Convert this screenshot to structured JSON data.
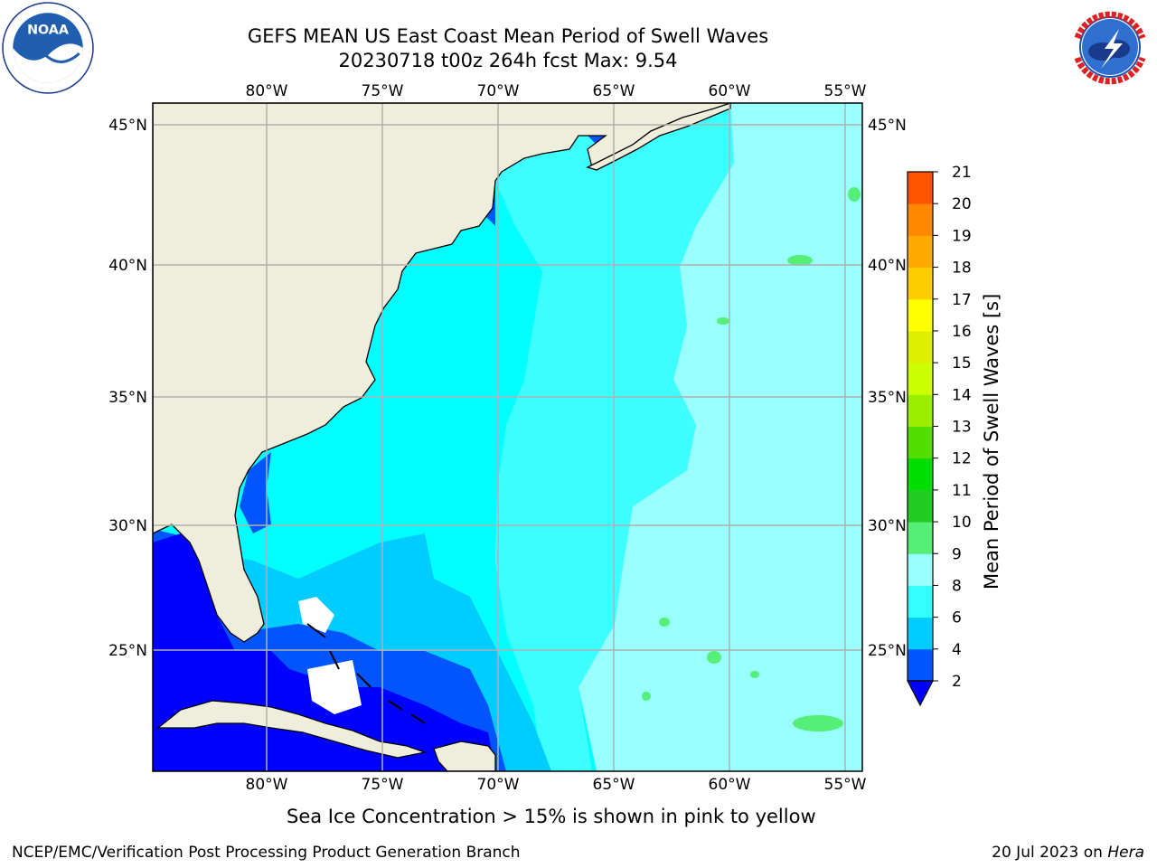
{
  "header": {
    "title_line1": "GEFS MEAN US East Coast Mean Period of Swell Waves",
    "title_line2": "20230718 t00z 264h fcst   Max: 9.54"
  },
  "logos": {
    "left": "noaa-logo",
    "left_text": "NOAA",
    "left_ring_text": "NATIONAL OCEANIC AND ATMOSPHERIC ADMINISTRATION · U.S. DEPARTMENT OF COMMERCE",
    "right": "nws-logo",
    "right_ring_text": "NATIONAL WEATHER SERVICE"
  },
  "map": {
    "lon_labels": [
      "80°W",
      "75°W",
      "70°W",
      "65°W",
      "60°W",
      "55°W"
    ],
    "lat_labels": [
      "45°N",
      "40°N",
      "35°N",
      "30°N",
      "25°N"
    ],
    "lon_values": [
      -80,
      -75,
      -70,
      -65,
      -60,
      -55
    ],
    "lat_values": [
      45,
      40,
      35,
      30,
      25
    ],
    "extent": {
      "lon": [
        -85,
        -54.3
      ],
      "lat": [
        20.3,
        45.8
      ]
    },
    "colors": {
      "land": "#efeedd",
      "grid": "#b0b0b0",
      "coast": "#000000"
    }
  },
  "colorbar": {
    "label": "Mean Period of Swell Waves [s]",
    "ticks": [
      "2",
      "4",
      "6",
      "8",
      "9",
      "10",
      "11",
      "12",
      "13",
      "14",
      "15",
      "16",
      "17",
      "18",
      "19",
      "20",
      "21"
    ],
    "colors": [
      "#0055ff",
      "#00ccff",
      "#33ffff",
      "#99ffff",
      "#55ee77",
      "#22cc22",
      "#00dd00",
      "#55dd00",
      "#99ee00",
      "#ccff00",
      "#ddee00",
      "#ffff00",
      "#ffcc00",
      "#ffaa00",
      "#ff8800",
      "#ff5500",
      "#ff2200",
      "#ff0000"
    ],
    "extend_min_color": "#0000ff"
  },
  "footer": {
    "note": "Sea Ice Concentration > 15% is shown in pink to yellow",
    "left": "NCEP/EMC/Verification Post Processing Product Generation Branch",
    "right_prefix": "20 Jul 2023 on ",
    "right_machine": "Hera"
  }
}
